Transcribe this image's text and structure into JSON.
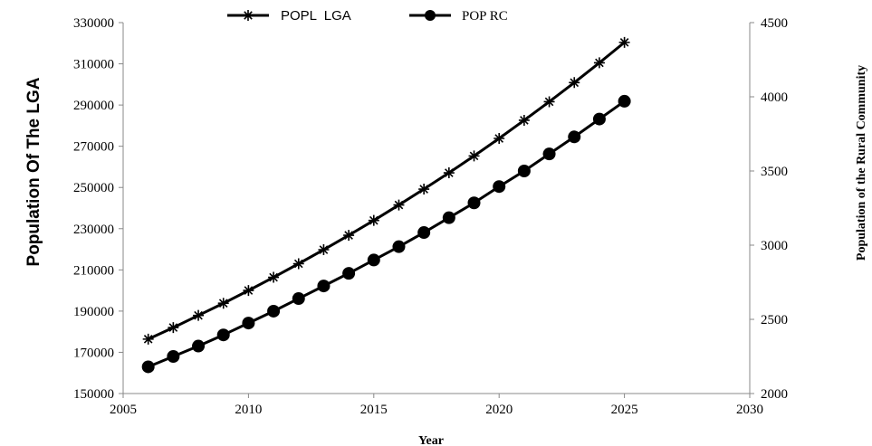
{
  "chart_data": {
    "type": "line",
    "title": "",
    "xlabel": "Year",
    "ylabel_left": "Population Of The LGA",
    "ylabel_right": "Population of the Rural Community",
    "xlim": [
      2005,
      2030
    ],
    "ylim_left": [
      150000,
      330000
    ],
    "ylim_right": [
      2000,
      4500
    ],
    "x_ticks": [
      "2005",
      "2010",
      "2015",
      "2020",
      "2025",
      "2030"
    ],
    "y_left_ticks": [
      "150000",
      "170000",
      "190000",
      "210000",
      "230000",
      "250000",
      "270000",
      "290000",
      "310000",
      "330000"
    ],
    "y_right_ticks": [
      "2000",
      "2500",
      "3000",
      "3500",
      "4000",
      "4500"
    ],
    "grid": false,
    "legend_position": "top",
    "x": [
      2006,
      2007,
      2008,
      2009,
      2010,
      2011,
      2012,
      2013,
      2014,
      2015,
      2016,
      2017,
      2018,
      2019,
      2020,
      2021,
      2022,
      2023,
      2024,
      2025
    ],
    "series": [
      {
        "name": "POPL  LGA",
        "axis": "left",
        "marker": "star",
        "color": "#000000",
        "values": [
          176400,
          182000,
          187900,
          193800,
          200000,
          206400,
          213000,
          219800,
          226800,
          234000,
          241500,
          249200,
          257100,
          265300,
          273800,
          282600,
          291600,
          300900,
          310500,
          320400
        ]
      },
      {
        "name": "POP RC",
        "axis": "right",
        "marker": "circle",
        "color": "#000000",
        "values": [
          2180,
          2250,
          2320,
          2395,
          2475,
          2555,
          2640,
          2725,
          2810,
          2900,
          2990,
          3085,
          3185,
          3285,
          3395,
          3500,
          3615,
          3730,
          3850,
          3970
        ]
      }
    ]
  }
}
